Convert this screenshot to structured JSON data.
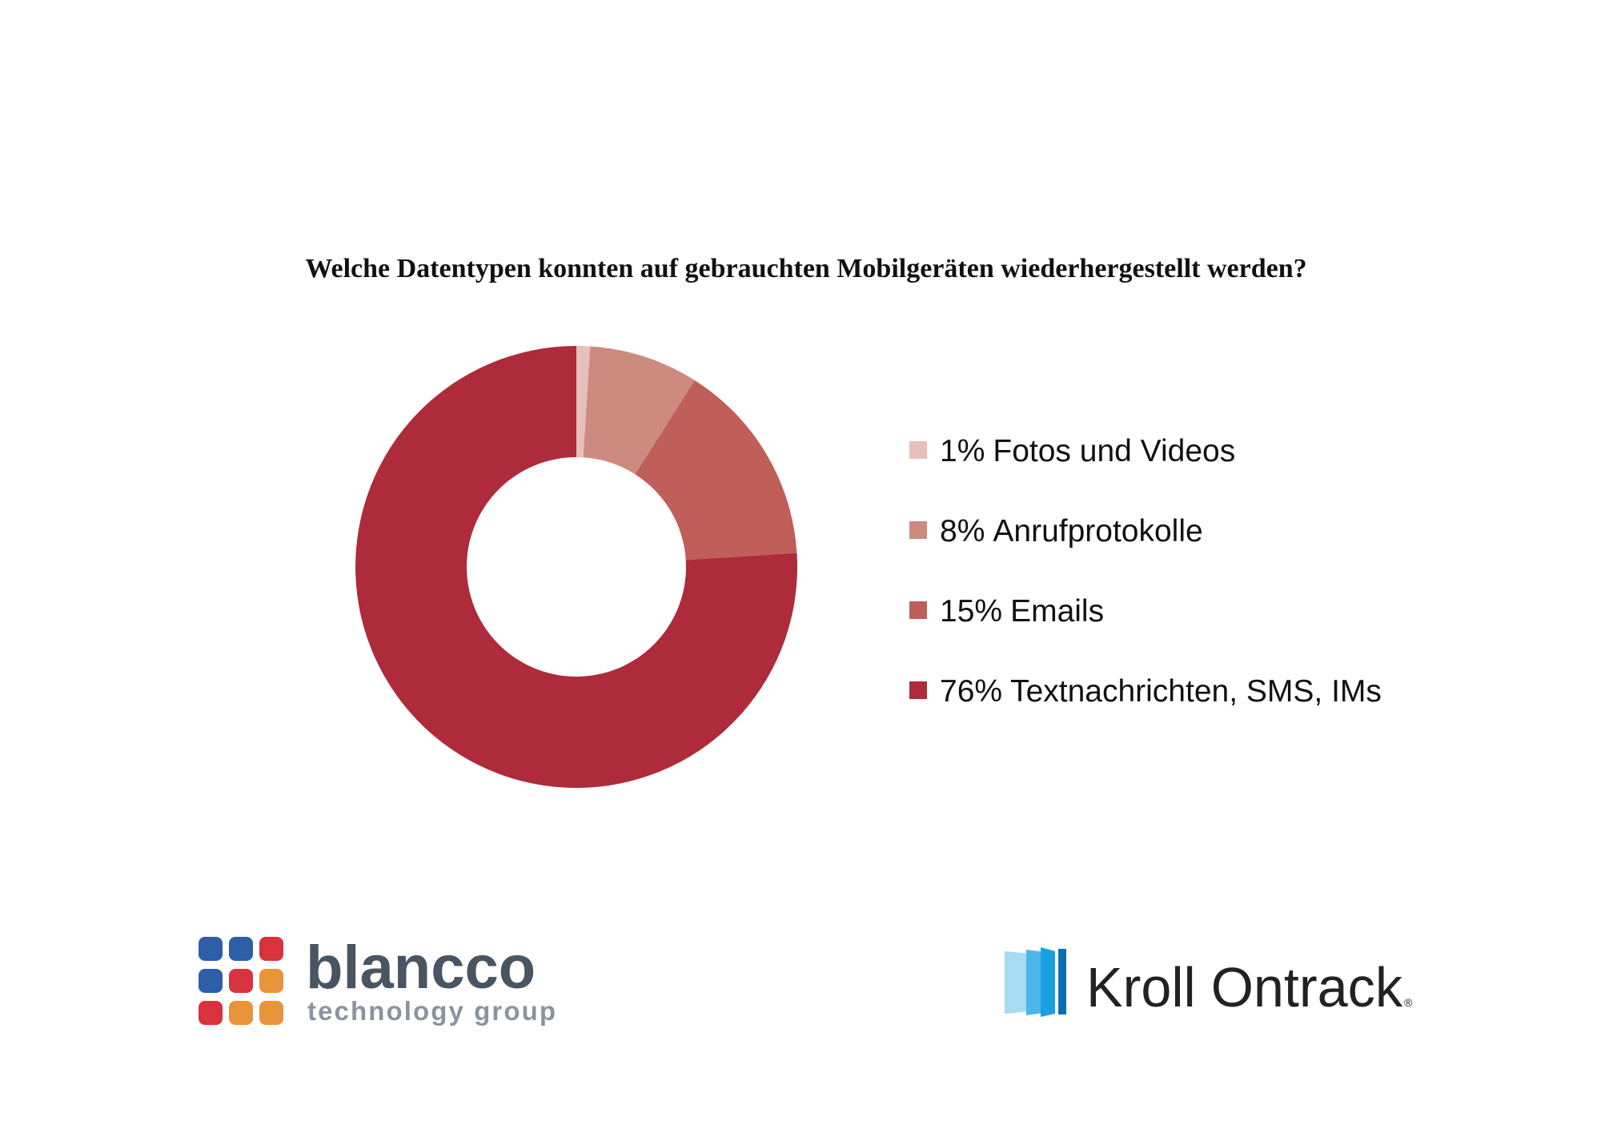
{
  "chart_data": {
    "type": "donut",
    "title": "Welche Datentypen konnten auf gebrauchten Mobilgeräten wiederhergestellt werden?",
    "categories": [
      "Fotos und Videos",
      "Anrufprotokolle",
      "Emails",
      "Textnachrichten, SMS, IMs"
    ],
    "values": [
      1,
      8,
      15,
      76
    ],
    "value_labels": [
      "1%",
      "8%",
      "15%",
      "76%"
    ],
    "colors": [
      "#e8c0bb",
      "#cd8a7f",
      "#c05e5a",
      "#ad2b3a"
    ],
    "legend": "right"
  },
  "logos": {
    "left": {
      "name": "blancco",
      "tagline": "technology group"
    },
    "right": {
      "name": "Kroll Ontrack",
      "mark": "®"
    }
  }
}
